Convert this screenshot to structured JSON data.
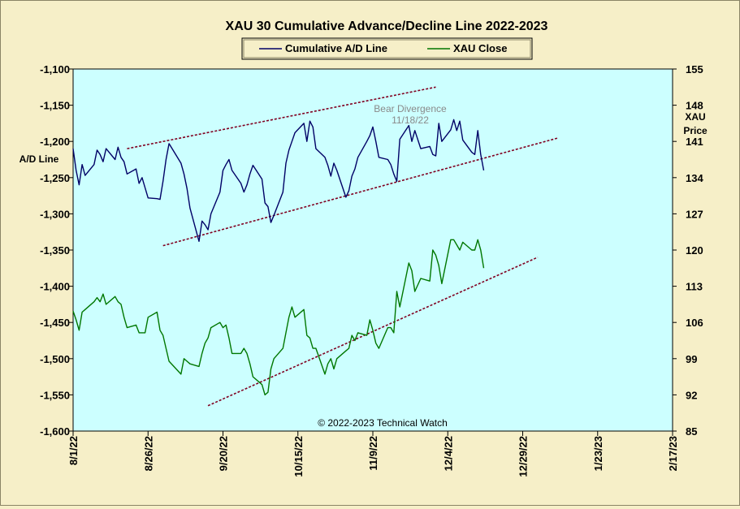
{
  "chart_data": {
    "type": "line",
    "title": "XAU 30 Cumulative Advance/Decline Line 2022-2023",
    "legend": {
      "placement": "top-center",
      "entries": [
        "Cumulative A/D Line",
        "XAU Close"
      ]
    },
    "left_axis": {
      "label": "A/D Line",
      "range": [
        -1600,
        -1100
      ],
      "ticks": [
        "-1,100",
        "-1,150",
        "-1,200",
        "-1,250",
        "-1,300",
        "-1,350",
        "-1,400",
        "-1,450",
        "-1,500",
        "-1,550",
        "-1,600"
      ]
    },
    "right_axis": {
      "label_line1": "XAU",
      "label_line2": "Price",
      "range": [
        85,
        155
      ],
      "ticks": [
        "155",
        "148",
        "141",
        "134",
        "127",
        "120",
        "113",
        "106",
        "99",
        "92",
        "85"
      ]
    },
    "x_axis": {
      "range": [
        "2022-08-01",
        "2023-02-17"
      ],
      "ticks": [
        "8/1/22",
        "8/26/22",
        "9/20/22",
        "10/15/22",
        "11/9/22",
        "12/4/22",
        "12/29/22",
        "1/23/23",
        "2/17/23"
      ]
    },
    "annotation": {
      "line1": "Bear Divergence",
      "line2": "11/18/22"
    },
    "credit": "© 2022-2023  Technical Watch",
    "colors": {
      "ad_line": "#000066",
      "xau": "#007700",
      "trend": "#800020",
      "plot_bg": "#ccffff",
      "page_bg": "#f6efc8"
    },
    "series": [
      {
        "name": "Cumulative A/D Line",
        "axis": "left",
        "x": [
          "2022-08-01",
          "2022-08-02",
          "2022-08-03",
          "2022-08-04",
          "2022-08-05",
          "2022-08-08",
          "2022-08-09",
          "2022-08-10",
          "2022-08-11",
          "2022-08-12",
          "2022-08-15",
          "2022-08-16",
          "2022-08-17",
          "2022-08-18",
          "2022-08-19",
          "2022-08-22",
          "2022-08-23",
          "2022-08-24",
          "2022-08-25",
          "2022-08-26",
          "2022-08-29",
          "2022-08-30",
          "2022-08-31",
          "2022-09-01",
          "2022-09-02",
          "2022-09-06",
          "2022-09-07",
          "2022-09-08",
          "2022-09-09",
          "2022-09-12",
          "2022-09-13",
          "2022-09-14",
          "2022-09-15",
          "2022-09-16",
          "2022-09-19",
          "2022-09-20",
          "2022-09-21",
          "2022-09-22",
          "2022-09-23",
          "2022-09-26",
          "2022-09-27",
          "2022-09-28",
          "2022-09-29",
          "2022-09-30",
          "2022-10-03",
          "2022-10-04",
          "2022-10-05",
          "2022-10-06",
          "2022-10-07",
          "2022-10-10",
          "2022-10-11",
          "2022-10-12",
          "2022-10-13",
          "2022-10-14",
          "2022-10-17",
          "2022-10-18",
          "2022-10-19",
          "2022-10-20",
          "2022-10-21",
          "2022-10-24",
          "2022-10-25",
          "2022-10-26",
          "2022-10-27",
          "2022-10-28",
          "2022-10-31",
          "2022-11-01",
          "2022-11-02",
          "2022-11-03",
          "2022-11-04",
          "2022-11-07",
          "2022-11-08",
          "2022-11-09",
          "2022-11-10",
          "2022-11-11",
          "2022-11-14",
          "2022-11-15",
          "2022-11-16",
          "2022-11-17",
          "2022-11-18",
          "2022-11-21",
          "2022-11-22",
          "2022-11-23",
          "2022-11-25",
          "2022-11-28",
          "2022-11-29",
          "2022-11-30",
          "2022-12-01",
          "2022-12-02",
          "2022-12-05",
          "2022-12-06",
          "2022-12-07",
          "2022-12-08",
          "2022-12-09",
          "2022-12-12",
          "2022-12-13",
          "2022-12-14",
          "2022-12-15",
          "2022-12-16"
        ],
        "values": [
          -1210,
          -1240,
          -1260,
          -1232,
          -1247,
          -1232,
          -1212,
          -1218,
          -1228,
          -1210,
          -1225,
          -1208,
          -1222,
          -1228,
          -1245,
          -1238,
          -1258,
          -1250,
          -1264,
          -1278,
          -1279,
          -1280,
          -1255,
          -1225,
          -1203,
          -1230,
          -1245,
          -1265,
          -1292,
          -1338,
          -1310,
          -1315,
          -1322,
          -1300,
          -1270,
          -1240,
          -1232,
          -1225,
          -1240,
          -1258,
          -1270,
          -1260,
          -1245,
          -1233,
          -1252,
          -1285,
          -1290,
          -1312,
          -1302,
          -1270,
          -1230,
          -1212,
          -1200,
          -1188,
          -1175,
          -1200,
          -1172,
          -1180,
          -1210,
          -1222,
          -1233,
          -1248,
          -1230,
          -1240,
          -1277,
          -1268,
          -1248,
          -1238,
          -1222,
          -1200,
          -1192,
          -1180,
          -1200,
          -1222,
          -1225,
          -1232,
          -1245,
          -1255,
          -1197,
          -1178,
          -1200,
          -1185,
          -1210,
          -1207,
          -1218,
          -1220,
          -1175,
          -1200,
          -1184,
          -1170,
          -1185,
          -1172,
          -1198,
          -1215,
          -1218,
          -1185,
          -1218,
          -1240
        ]
      },
      {
        "name": "XAU Close",
        "axis": "right",
        "x": [
          "2022-08-01",
          "2022-08-02",
          "2022-08-03",
          "2022-08-04",
          "2022-08-05",
          "2022-08-08",
          "2022-08-09",
          "2022-08-10",
          "2022-08-11",
          "2022-08-12",
          "2022-08-15",
          "2022-08-16",
          "2022-08-17",
          "2022-08-18",
          "2022-08-19",
          "2022-08-22",
          "2022-08-23",
          "2022-08-24",
          "2022-08-25",
          "2022-08-26",
          "2022-08-29",
          "2022-08-30",
          "2022-08-31",
          "2022-09-01",
          "2022-09-02",
          "2022-09-06",
          "2022-09-07",
          "2022-09-08",
          "2022-09-09",
          "2022-09-12",
          "2022-09-13",
          "2022-09-14",
          "2022-09-15",
          "2022-09-16",
          "2022-09-19",
          "2022-09-20",
          "2022-09-21",
          "2022-09-22",
          "2022-09-23",
          "2022-09-26",
          "2022-09-27",
          "2022-09-28",
          "2022-09-29",
          "2022-09-30",
          "2022-10-03",
          "2022-10-04",
          "2022-10-05",
          "2022-10-06",
          "2022-10-07",
          "2022-10-10",
          "2022-10-11",
          "2022-10-12",
          "2022-10-13",
          "2022-10-14",
          "2022-10-17",
          "2022-10-18",
          "2022-10-19",
          "2022-10-20",
          "2022-10-21",
          "2022-10-24",
          "2022-10-25",
          "2022-10-26",
          "2022-10-27",
          "2022-10-28",
          "2022-10-31",
          "2022-11-01",
          "2022-11-02",
          "2022-11-03",
          "2022-11-04",
          "2022-11-07",
          "2022-11-08",
          "2022-11-09",
          "2022-11-10",
          "2022-11-11",
          "2022-11-14",
          "2022-11-15",
          "2022-11-16",
          "2022-11-17",
          "2022-11-18",
          "2022-11-21",
          "2022-11-22",
          "2022-11-23",
          "2022-11-25",
          "2022-11-28",
          "2022-11-29",
          "2022-11-30",
          "2022-12-01",
          "2022-12-02",
          "2022-12-05",
          "2022-12-06",
          "2022-12-07",
          "2022-12-08",
          "2022-12-09",
          "2022-12-12",
          "2022-12-13",
          "2022-12-14",
          "2022-12-15",
          "2022-12-16"
        ],
        "values": [
          108.2,
          106.5,
          104.5,
          108.0,
          108.5,
          110.0,
          110.8,
          110.0,
          111.5,
          109.5,
          111.0,
          110.0,
          109.5,
          107.0,
          105.0,
          105.5,
          104.0,
          104.0,
          104.0,
          107.0,
          108.0,
          104.5,
          103.5,
          101.0,
          98.5,
          96.0,
          99.0,
          98.5,
          98.0,
          97.5,
          100.0,
          102.0,
          103.0,
          105.0,
          106.0,
          105.0,
          105.5,
          103.0,
          100.0,
          100.0,
          101.0,
          100.0,
          98.0,
          95.5,
          94.0,
          92.0,
          92.5,
          97.0,
          99.0,
          101.0,
          104.0,
          107.0,
          109.0,
          107.0,
          108.5,
          103.5,
          103.0,
          101.0,
          101.0,
          96.0,
          98.0,
          99.0,
          97.0,
          99.0,
          100.5,
          101.0,
          103.5,
          102.5,
          104.0,
          103.5,
          106.5,
          104.5,
          102.0,
          101.0,
          105.0,
          105.0,
          104.0,
          112.0,
          109.0,
          117.5,
          116.0,
          112.0,
          114.5,
          114.0,
          120.0,
          119.0,
          117.0,
          113.5,
          122.0,
          122.0,
          121.0,
          120.0,
          121.5,
          120.0,
          120.0,
          122.0,
          120.0,
          116.5
        ]
      }
    ],
    "trendlines": [
      {
        "axis": "left",
        "from": [
          "2022-08-19",
          -1210
        ],
        "to": [
          "2022-11-30",
          -1125
        ]
      },
      {
        "axis": "left",
        "from": [
          "2022-08-31",
          -1344
        ],
        "to": [
          "2023-01-10",
          -1195
        ]
      },
      {
        "axis": "left",
        "from": [
          "2022-09-15",
          -1565
        ],
        "to": [
          "2023-01-03",
          -1360
        ]
      }
    ]
  }
}
